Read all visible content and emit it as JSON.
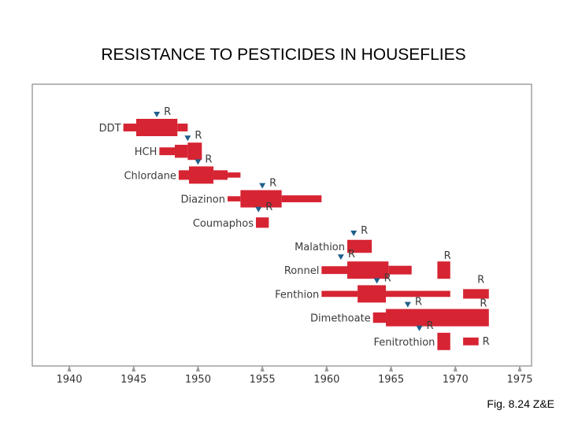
{
  "title": "RESISTANCE TO PESTICIDES IN HOUSEFLIES",
  "caption": "Fig. 8.24 Z&E",
  "colors": {
    "bar": "#d62433",
    "marker": "#1f5f8b",
    "frame": "#888888",
    "axis": "#999999"
  },
  "chart_data": {
    "type": "timeline",
    "title": "RESISTANCE TO PESTICIDES IN HOUSEFLIES",
    "xlim": [
      1940,
      1975
    ],
    "x_ticks": [
      "1940",
      "1945",
      "1950",
      "1955",
      "1960",
      "1965",
      "1970",
      "1975"
    ],
    "resistance_marker_label": "R",
    "series": [
      {
        "name": "DDT",
        "resistance_year": 1946.8,
        "segments": [
          [
            1944.2,
            1945.2,
            0.45
          ],
          [
            1945.2,
            1948.4,
            1.0
          ],
          [
            1948.4,
            1949.2,
            0.45
          ]
        ]
      },
      {
        "name": "HCH",
        "resistance_year": 1949.2,
        "segments": [
          [
            1947.0,
            1948.2,
            0.45
          ],
          [
            1948.2,
            1949.2,
            0.75
          ],
          [
            1949.2,
            1950.3,
            1.0
          ]
        ]
      },
      {
        "name": "Chlordane",
        "resistance_year": 1950.0,
        "segments": [
          [
            1948.5,
            1949.3,
            0.55
          ],
          [
            1949.3,
            1951.2,
            1.0
          ],
          [
            1951.2,
            1952.3,
            0.55
          ],
          [
            1952.3,
            1953.3,
            0.3
          ]
        ]
      },
      {
        "name": "Diazinon",
        "resistance_year": 1955.0,
        "segments": [
          [
            1952.3,
            1953.3,
            0.3
          ],
          [
            1953.3,
            1956.5,
            1.0
          ],
          [
            1956.5,
            1959.6,
            0.4
          ]
        ]
      },
      {
        "name": "Coumaphos",
        "resistance_year": 1954.7,
        "segments": [
          [
            1954.5,
            1955.5,
            0.6
          ]
        ]
      },
      {
        "name": "Malathion",
        "resistance_year": 1962.1,
        "segments": [
          [
            1961.6,
            1963.5,
            0.75
          ]
        ]
      },
      {
        "name": "Ronnel",
        "resistance_year": 1961.1,
        "segments": [
          [
            1959.6,
            1961.6,
            0.45
          ],
          [
            1961.6,
            1964.8,
            1.0
          ],
          [
            1964.8,
            1966.6,
            0.5
          ],
          [
            1968.6,
            1969.6,
            1.0
          ]
        ]
      },
      {
        "name": "Fenthion",
        "resistance_year": 1963.9,
        "segments": [
          [
            1959.6,
            1962.4,
            0.35
          ],
          [
            1962.4,
            1964.6,
            1.0
          ],
          [
            1964.6,
            1969.6,
            0.35
          ],
          [
            1970.6,
            1972.6,
            0.55
          ]
        ]
      },
      {
        "name": "Dimethoate",
        "resistance_year": 1966.3,
        "segments": [
          [
            1963.6,
            1964.6,
            0.6
          ],
          [
            1964.6,
            1972.6,
            1.0
          ]
        ]
      },
      {
        "name": "Fenitrothion",
        "resistance_year": 1967.2,
        "segments": [
          [
            1968.6,
            1969.6,
            1.0
          ],
          [
            1970.6,
            1971.8,
            0.45
          ]
        ]
      }
    ],
    "late_resistance": [
      {
        "name": "Ronnel",
        "year": 1969.1
      },
      {
        "name": "Fenthion",
        "year": 1971.7
      },
      {
        "name": "Dimethoate",
        "year": 1971.9
      },
      {
        "name": "Fenitrothion",
        "year": 1972.1
      }
    ]
  }
}
